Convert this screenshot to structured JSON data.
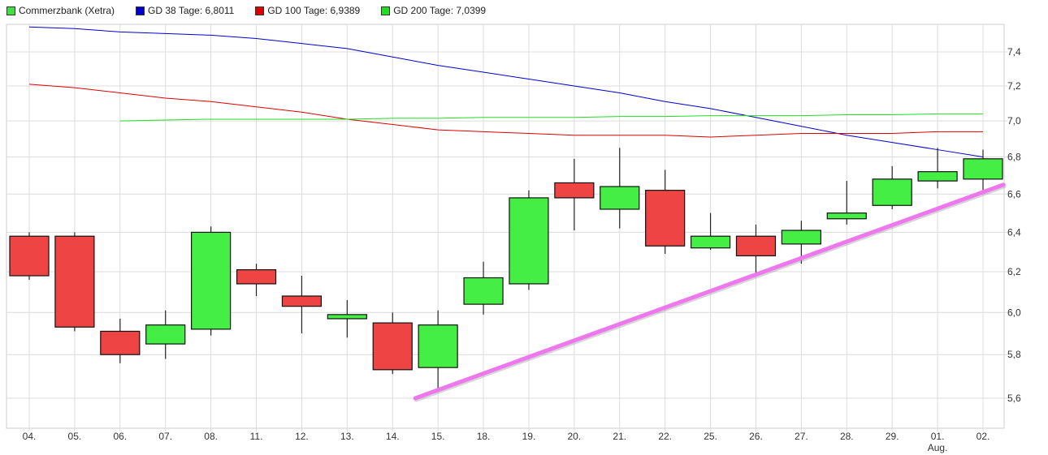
{
  "legend": [
    {
      "label": "Commerzbank (Xetra)",
      "color": "#44dd44"
    },
    {
      "label": "GD 38 Tage: 6,8011",
      "color": "#0000cc"
    },
    {
      "label": "GD 100 Tage: 6,9389",
      "color": "#dd0000"
    },
    {
      "label": "GD 200 Tage: 7,0399",
      "color": "#22dd22"
    }
  ],
  "chart_data": {
    "type": "candlestick",
    "title": "",
    "y_scale": "log",
    "ylim": [
      5.47,
      7.6
    ],
    "y_ticks": [
      "5,6",
      "5,8",
      "6,0",
      "6,2",
      "6,4",
      "6,6",
      "6,8",
      "7,0",
      "7,2",
      "7,4"
    ],
    "y_tick_values": [
      5.6,
      5.8,
      6.0,
      6.2,
      6.4,
      6.6,
      6.8,
      7.0,
      7.2,
      7.4
    ],
    "grid": true,
    "categories": [
      "04.",
      "05.",
      "06.",
      "07.",
      "08.",
      "11.",
      "12.",
      "13.",
      "14.",
      "15.",
      "18.",
      "19.",
      "20.",
      "21.",
      "22.",
      "25.",
      "26.",
      "27.",
      "28.",
      "29.",
      "01.",
      "02."
    ],
    "month_label": {
      "category": "01.",
      "text": "Aug."
    },
    "colors": {
      "up": "#44ee44",
      "down": "#ee4444",
      "trendline": "#ee77ee"
    },
    "candles": [
      {
        "o": 6.38,
        "h": 6.4,
        "l": 6.16,
        "c": 6.18
      },
      {
        "o": 6.38,
        "h": 6.4,
        "l": 5.91,
        "c": 5.93
      },
      {
        "o": 5.91,
        "h": 5.97,
        "l": 5.76,
        "c": 5.8
      },
      {
        "o": 5.85,
        "h": 6.01,
        "l": 5.78,
        "c": 5.94
      },
      {
        "o": 5.92,
        "h": 6.43,
        "l": 5.89,
        "c": 6.4
      },
      {
        "o": 6.21,
        "h": 6.24,
        "l": 6.08,
        "c": 6.14
      },
      {
        "o": 6.08,
        "h": 6.18,
        "l": 5.9,
        "c": 6.03
      },
      {
        "o": 5.97,
        "h": 6.06,
        "l": 5.88,
        "c": 5.99
      },
      {
        "o": 5.95,
        "h": 6.0,
        "l": 5.71,
        "c": 5.73
      },
      {
        "o": 5.74,
        "h": 6.01,
        "l": 5.64,
        "c": 5.94
      },
      {
        "o": 6.04,
        "h": 6.25,
        "l": 5.99,
        "c": 6.17
      },
      {
        "o": 6.14,
        "h": 6.62,
        "l": 6.11,
        "c": 6.58
      },
      {
        "o": 6.66,
        "h": 6.79,
        "l": 6.41,
        "c": 6.58
      },
      {
        "o": 6.52,
        "h": 6.85,
        "l": 6.42,
        "c": 6.64
      },
      {
        "o": 6.62,
        "h": 6.73,
        "l": 6.29,
        "c": 6.33
      },
      {
        "o": 6.32,
        "h": 6.5,
        "l": 6.31,
        "c": 6.38
      },
      {
        "o": 6.38,
        "h": 6.44,
        "l": 6.19,
        "c": 6.28
      },
      {
        "o": 6.34,
        "h": 6.46,
        "l": 6.24,
        "c": 6.41
      },
      {
        "o": 6.47,
        "h": 6.67,
        "l": 6.44,
        "c": 6.5
      },
      {
        "o": 6.54,
        "h": 6.75,
        "l": 6.52,
        "c": 6.68
      },
      {
        "o": 6.67,
        "h": 6.85,
        "l": 6.63,
        "c": 6.72
      },
      {
        "o": 6.68,
        "h": 6.84,
        "l": 6.62,
        "c": 6.79
      }
    ],
    "series": [
      {
        "name": "GD 38 Tage",
        "color": "#0000cc",
        "values": [
          7.55,
          7.54,
          7.52,
          7.51,
          7.5,
          7.48,
          7.45,
          7.42,
          7.37,
          7.32,
          7.28,
          7.24,
          7.2,
          7.16,
          7.11,
          7.07,
          7.02,
          6.97,
          6.92,
          6.88,
          6.84,
          6.8
        ]
      },
      {
        "name": "GD 100 Tage",
        "color": "#dd0000",
        "values": [
          7.21,
          7.19,
          7.16,
          7.13,
          7.11,
          7.08,
          7.05,
          7.01,
          6.98,
          6.95,
          6.94,
          6.93,
          6.92,
          6.92,
          6.92,
          6.91,
          6.92,
          6.93,
          6.93,
          6.93,
          6.94,
          6.94
        ]
      },
      {
        "name": "GD 200 Tage",
        "color": "#22dd22",
        "values": [
          null,
          null,
          7.0,
          7.005,
          7.01,
          7.01,
          7.01,
          7.01,
          7.015,
          7.015,
          7.02,
          7.02,
          7.02,
          7.025,
          7.025,
          7.03,
          7.03,
          7.03,
          7.035,
          7.035,
          7.04,
          7.04
        ]
      }
    ],
    "trendline": [
      {
        "x": 8.5,
        "y": 5.6
      },
      {
        "x": 21.45,
        "y": 6.65
      }
    ]
  }
}
